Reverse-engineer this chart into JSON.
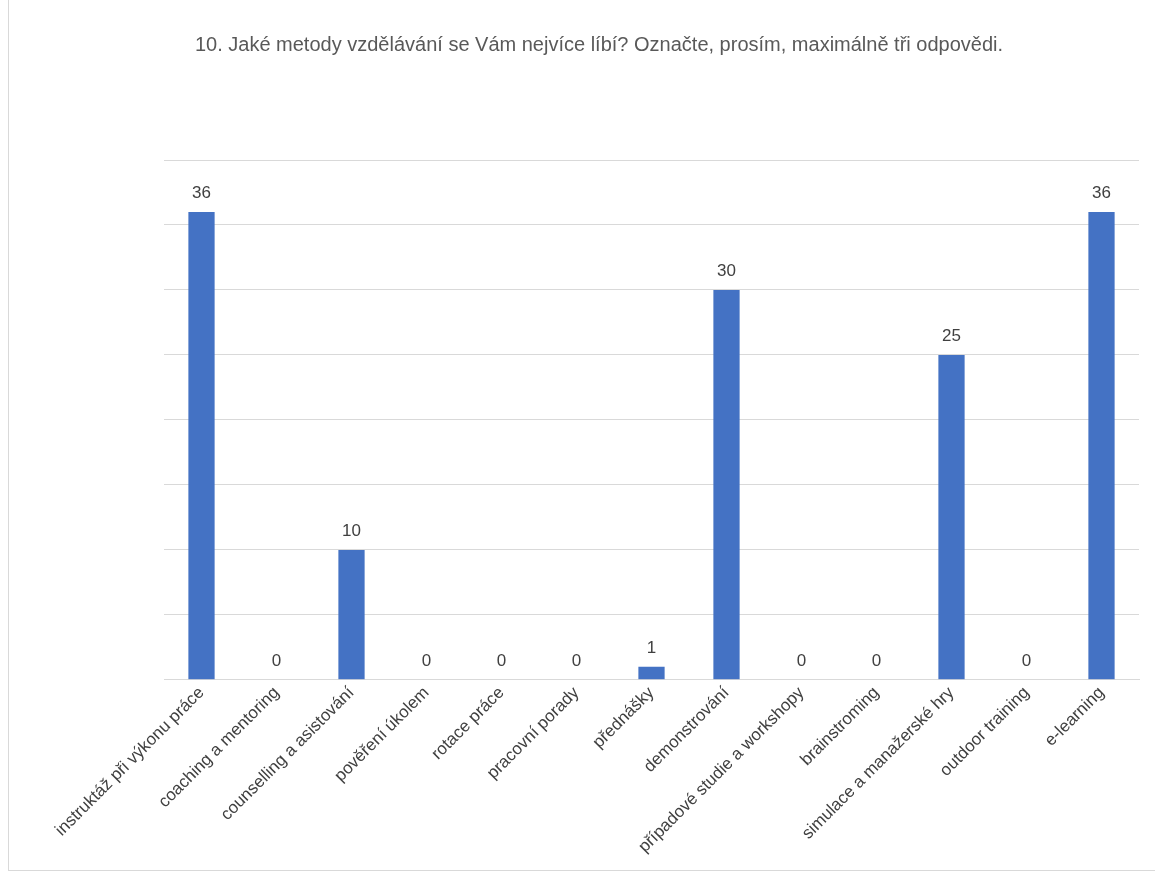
{
  "chart_data": {
    "type": "bar",
    "title": "10.  Jaké metody vzdělávání se Vám nejvíce líbí? Označte, prosím, maximálně tři odpovědi.",
    "categories": [
      "instruktáž při výkonu práce",
      "coaching a mentoring",
      "counselling a asistování",
      "pověření úkolem",
      "rotace práce",
      "pracovní porady",
      "přednášky",
      "demonstrování",
      "případové studie a workshopy",
      "brainstroming",
      "simulace a manažerské hry",
      "outdoor training",
      "e-learning"
    ],
    "values": [
      36,
      0,
      10,
      0,
      0,
      0,
      1,
      30,
      0,
      0,
      25,
      0,
      36
    ],
    "color": "#4472c4",
    "ylim": [
      0,
      40
    ],
    "yticks": [
      {
        "value": 0,
        "label": null
      },
      {
        "value": 5,
        "label": null
      },
      {
        "value": 10,
        "label": null
      },
      {
        "value": 15,
        "label": null
      },
      {
        "value": 20,
        "label": null
      },
      {
        "value": 25,
        "label": null
      },
      {
        "value": 30,
        "label": null
      },
      {
        "value": 35,
        "label": null
      },
      {
        "value": 40,
        "label": null
      }
    ],
    "grid": "y",
    "legend": false,
    "data_labels": true
  }
}
